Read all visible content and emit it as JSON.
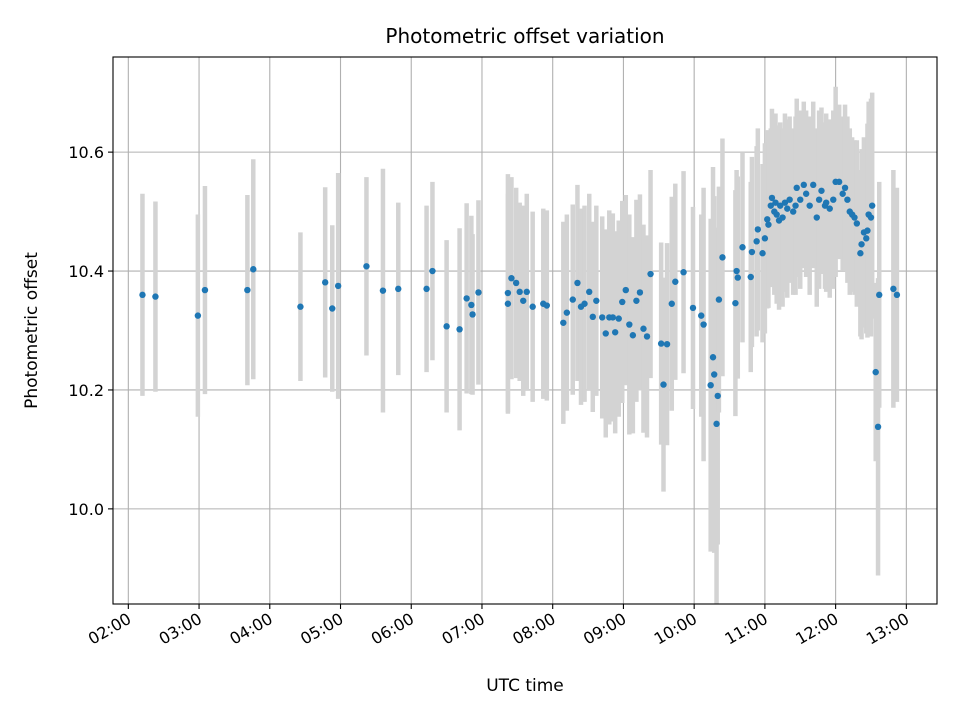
{
  "chart_data": {
    "type": "scatter",
    "title": "Photometric offset variation",
    "xlabel": "UTC time",
    "ylabel": "Photometric offset",
    "xlim": [
      "01:47",
      "13:26"
    ],
    "ylim": [
      9.84,
      10.76
    ],
    "x_ticks": [
      "02:00",
      "03:00",
      "04:00",
      "05:00",
      "06:00",
      "07:00",
      "08:00",
      "09:00",
      "10:00",
      "11:00",
      "12:00",
      "13:00"
    ],
    "y_ticks": [
      10.0,
      10.2,
      10.4,
      10.6
    ],
    "y_tick_labels": [
      "10.0",
      "10.2",
      "10.4",
      "10.6"
    ],
    "grid": true,
    "colors": {
      "point": "#1f77b4",
      "errorbar": "#d3d3d3",
      "grid": "#b0b0b0"
    },
    "series": [
      {
        "x": [
          "02:12",
          "02:23",
          "02:59",
          "03:05",
          "03:41",
          "03:46",
          "04:26",
          "04:47",
          "04:53",
          "04:58",
          "05:22",
          "05:36",
          "05:49",
          "06:13",
          "06:18",
          "06:30",
          "06:41",
          "06:47",
          "06:51",
          "06:52",
          "06:57",
          "07:22",
          "07:22",
          "07:25",
          "07:29",
          "07:32",
          "07:35",
          "07:38",
          "07:43",
          "07:52",
          "07:55",
          "08:09",
          "08:12",
          "08:17",
          "08:21",
          "08:24",
          "08:27",
          "08:31",
          "08:34",
          "08:37",
          "08:42",
          "08:45",
          "08:48",
          "08:51",
          "08:53",
          "08:56",
          "08:59",
          "09:02",
          "09:05",
          "09:08",
          "09:11",
          "09:14",
          "09:17",
          "09:20",
          "09:23",
          "09:32",
          "09:34",
          "09:37",
          "09:41",
          "09:44",
          "09:51",
          "09:59",
          "10:06",
          "10:08",
          "10:14",
          "10:16",
          "10:17",
          "10:19",
          "10:20",
          "10:21",
          "10:24",
          "10:35",
          "10:36",
          "10:37",
          "10:41",
          "10:48",
          "10:49",
          "10:53",
          "10:54",
          "10:58",
          "11:00",
          "11:02",
          "11:03",
          "11:05",
          "11:06",
          "11:08",
          "11:09",
          "11:10",
          "11:12",
          "11:13",
          "11:15",
          "11:17",
          "11:19",
          "11:21",
          "11:24",
          "11:26",
          "11:27",
          "11:30",
          "11:33",
          "11:35",
          "11:38",
          "11:41",
          "11:44",
          "11:46",
          "11:48",
          "11:51",
          "11:52",
          "11:55",
          "11:58",
          "12:00",
          "12:03",
          "12:06",
          "12:08",
          "12:10",
          "12:12",
          "12:14",
          "12:16",
          "12:18",
          "12:21",
          "12:22",
          "12:24",
          "12:26",
          "12:27",
          "12:28",
          "12:30",
          "12:31",
          "12:34",
          "12:36",
          "12:37",
          "12:49",
          "12:52"
        ],
        "y": [
          10.36,
          10.357,
          10.325,
          10.368,
          10.368,
          10.403,
          10.34,
          10.381,
          10.337,
          10.375,
          10.408,
          10.367,
          10.37,
          10.37,
          10.4,
          10.307,
          10.302,
          10.354,
          10.343,
          10.327,
          10.364,
          10.363,
          10.345,
          10.388,
          10.38,
          10.365,
          10.35,
          10.365,
          10.34,
          10.345,
          10.342,
          10.313,
          10.33,
          10.352,
          10.38,
          10.34,
          10.345,
          10.365,
          10.323,
          10.35,
          10.322,
          10.295,
          10.322,
          10.322,
          10.297,
          10.32,
          10.348,
          10.368,
          10.31,
          10.292,
          10.35,
          10.364,
          10.303,
          10.29,
          10.395,
          10.278,
          10.209,
          10.277,
          10.345,
          10.382,
          10.398,
          10.338,
          10.325,
          10.31,
          10.208,
          10.255,
          10.226,
          10.143,
          10.19,
          10.352,
          10.423,
          10.346,
          10.4,
          10.389,
          10.44,
          10.39,
          10.432,
          10.45,
          10.47,
          10.43,
          10.455,
          10.487,
          10.478,
          10.51,
          10.523,
          10.5,
          10.515,
          10.495,
          10.485,
          10.51,
          10.49,
          10.515,
          10.505,
          10.52,
          10.5,
          10.51,
          10.54,
          10.52,
          10.545,
          10.53,
          10.51,
          10.545,
          10.49,
          10.52,
          10.535,
          10.51,
          10.515,
          10.505,
          10.52,
          10.55,
          10.55,
          10.53,
          10.54,
          10.52,
          10.5,
          10.495,
          10.49,
          10.48,
          10.43,
          10.445,
          10.465,
          10.455,
          10.468,
          10.495,
          10.49,
          10.51,
          10.23,
          10.138,
          10.36,
          10.37,
          10.36
        ],
        "err": [
          0.17,
          0.16,
          0.17,
          0.175,
          0.16,
          0.185,
          0.125,
          0.16,
          0.14,
          0.19,
          0.15,
          0.205,
          0.145,
          0.14,
          0.15,
          0.145,
          0.17,
          0.16,
          0.15,
          0.135,
          0.155,
          0.2,
          0.185,
          0.17,
          0.16,
          0.15,
          0.16,
          0.165,
          0.16,
          0.16,
          0.16,
          0.17,
          0.165,
          0.16,
          0.165,
          0.165,
          0.165,
          0.165,
          0.16,
          0.16,
          0.17,
          0.175,
          0.18,
          0.175,
          0.17,
          0.165,
          0.17,
          0.16,
          0.185,
          0.165,
          0.17,
          0.165,
          0.175,
          0.17,
          0.175,
          0.17,
          0.18,
          0.17,
          0.18,
          0.165,
          0.17,
          0.17,
          0.17,
          0.23,
          0.28,
          0.32,
          0.3,
          0.33,
          0.25,
          0.19,
          0.2,
          0.19,
          0.17,
          0.17,
          0.16,
          0.16,
          0.16,
          0.16,
          0.17,
          0.15,
          0.16,
          0.15,
          0.14,
          0.13,
          0.15,
          0.14,
          0.15,
          0.15,
          0.15,
          0.14,
          0.15,
          0.15,
          0.15,
          0.14,
          0.14,
          0.15,
          0.15,
          0.15,
          0.14,
          0.14,
          0.15,
          0.14,
          0.15,
          0.15,
          0.14,
          0.14,
          0.15,
          0.15,
          0.15,
          0.16,
          0.13,
          0.13,
          0.14,
          0.14,
          0.14,
          0.13,
          0.13,
          0.14,
          0.14,
          0.16,
          0.16,
          0.16,
          0.18,
          0.19,
          0.2,
          0.19,
          0.15,
          0.25,
          0.19,
          0.2,
          0.18
        ]
      }
    ]
  }
}
